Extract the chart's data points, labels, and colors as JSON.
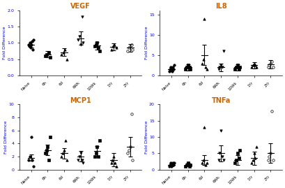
{
  "panels": [
    {
      "title": "VEGF",
      "ylabel": "Fold Difference",
      "ylim": [
        0.0,
        2.0
      ],
      "yticks": [
        0.0,
        0.5,
        1.0,
        1.5,
        2.0
      ],
      "groups": [
        "Naive",
        "6h",
        "6d",
        "6Wk",
        "10Wk",
        "1Yr",
        "2Yr"
      ],
      "means": [
        0.95,
        0.65,
        0.72,
        1.15,
        0.92,
        0.88,
        0.85
      ],
      "sems": [
        0.08,
        0.1,
        0.12,
        0.2,
        0.12,
        0.1,
        0.12
      ],
      "scatter": [
        [
          0.95,
          0.9,
          1.0,
          0.85,
          0.95,
          1.05,
          0.8,
          1.1
        ],
        [
          0.6,
          0.65,
          0.7,
          0.55
        ],
        [
          0.65,
          0.7,
          0.8,
          0.5
        ],
        [
          1.1,
          1.2,
          0.95,
          1.8,
          1.0
        ],
        [
          0.9,
          0.95,
          1.0,
          0.85,
          0.75
        ],
        [
          0.8,
          0.9,
          0.95,
          0.85
        ],
        [
          0.75,
          0.85,
          0.9,
          0.95,
          0.8
        ]
      ]
    },
    {
      "title": "IL8",
      "ylabel": "Fold Difference",
      "ylim": [
        0.0,
        16.0
      ],
      "yticks": [
        0,
        5,
        10,
        15
      ],
      "groups": [
        "Naive",
        "6h",
        "6d",
        "6Wk",
        "10Wk",
        "1Yr",
        "2Yr"
      ],
      "means": [
        1.5,
        2.0,
        5.0,
        2.0,
        2.0,
        2.5,
        2.8
      ],
      "sems": [
        0.5,
        0.8,
        2.5,
        1.0,
        0.8,
        0.8,
        1.0
      ],
      "scatter": [
        [
          1.0,
          1.5,
          2.0,
          1.5,
          1.0,
          2.0,
          1.5,
          2.5
        ],
        [
          1.5,
          2.0,
          2.5,
          2.0,
          1.5
        ],
        [
          3.0,
          4.0,
          14.0,
          2.0,
          1.5
        ],
        [
          1.5,
          2.0,
          2.5,
          2.0,
          6.0
        ],
        [
          1.5,
          2.0,
          2.5,
          1.5,
          2.0
        ],
        [
          2.0,
          2.5,
          3.0,
          2.5,
          2.0
        ],
        [
          2.0,
          2.5,
          3.0,
          3.5,
          2.0
        ]
      ]
    },
    {
      "title": "MCP1",
      "ylabel": "Fold Difference",
      "ylim": [
        0.0,
        10.0
      ],
      "yticks": [
        0,
        2,
        4,
        6,
        8,
        10
      ],
      "groups": [
        "Naive",
        "6h",
        "6d",
        "6Wk",
        "10Wk",
        "1Yr",
        "2Yr"
      ],
      "means": [
        1.8,
        3.0,
        2.5,
        2.0,
        2.8,
        1.5,
        3.5
      ],
      "sems": [
        0.5,
        0.8,
        0.8,
        0.8,
        0.8,
        1.0,
        1.5
      ],
      "scatter": [
        [
          1.5,
          2.0,
          5.0,
          1.5,
          0.5
        ],
        [
          2.5,
          3.0,
          3.5,
          1.5,
          5.0
        ],
        [
          2.0,
          2.5,
          3.0,
          4.5,
          1.5
        ],
        [
          1.5,
          2.0,
          2.5,
          1.5,
          1.0
        ],
        [
          2.0,
          2.5,
          3.5,
          2.0,
          4.5
        ],
        [
          1.0,
          1.5,
          2.0,
          1.0,
          0.5
        ],
        [
          2.5,
          3.0,
          3.5,
          8.5,
          1.5
        ]
      ]
    },
    {
      "title": "TNFa",
      "ylabel": "Fold Difference",
      "ylim": [
        0.0,
        20.0
      ],
      "yticks": [
        0,
        5,
        10,
        15,
        20
      ],
      "groups": [
        "Naive",
        "6h",
        "6d",
        "6Wk",
        "10Wk",
        "1Yr",
        "2Yr"
      ],
      "means": [
        1.5,
        1.5,
        3.0,
        5.0,
        3.0,
        3.5,
        5.0
      ],
      "sems": [
        0.5,
        0.5,
        1.5,
        2.5,
        1.5,
        2.0,
        3.0
      ],
      "scatter": [
        [
          1.0,
          1.5,
          2.0,
          1.0,
          1.5,
          2.0,
          1.5,
          2.0
        ],
        [
          1.0,
          1.5,
          2.0,
          1.0,
          1.5
        ],
        [
          2.0,
          3.0,
          13.0,
          1.5,
          2.0
        ],
        [
          3.0,
          5.0,
          12.0,
          4.0,
          3.0
        ],
        [
          2.0,
          3.0,
          5.0,
          3.5,
          6.0
        ],
        [
          2.0,
          3.0,
          5.0,
          3.5,
          7.0
        ],
        [
          3.0,
          4.0,
          5.0,
          18.0,
          3.0
        ]
      ]
    }
  ],
  "group_labels": [
    "Naive",
    "6h",
    "6d",
    "6Wk",
    "10Wk",
    "1Yr",
    "2Yr"
  ],
  "background_color": "#ffffff",
  "data_color": "#000000",
  "ylabel_color": "#0000cc",
  "title_color": "#cc6600"
}
